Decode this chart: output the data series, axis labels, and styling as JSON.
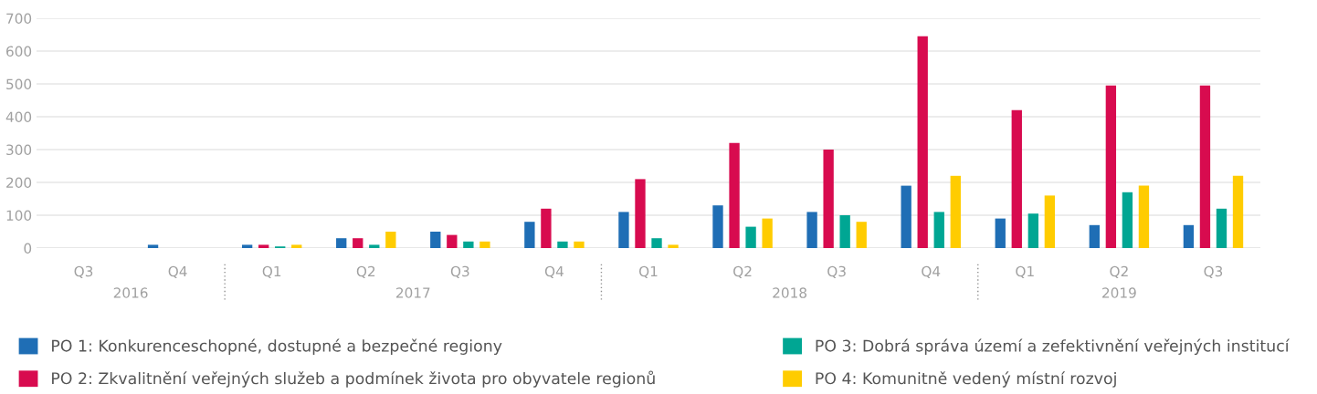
{
  "chart_data": {
    "type": "bar",
    "categories": [
      "Q3",
      "Q4",
      "Q1",
      "Q2",
      "Q3",
      "Q4",
      "Q1",
      "Q2",
      "Q3",
      "Q4",
      "Q1",
      "Q2",
      "Q3"
    ],
    "series": [
      {
        "name": "PO 1: Konkurenceschopné, dostupné a bezpečné regiony",
        "color": "#1f6eb5",
        "values": [
          0,
          10,
          10,
          30,
          50,
          80,
          110,
          130,
          110,
          190,
          90,
          70,
          70
        ]
      },
      {
        "name": "PO 2: Zkvalitnění veřejných služeb a podmínek života pro obyvatele regionů",
        "color": "#d80b4f",
        "values": [
          0,
          0,
          10,
          30,
          40,
          120,
          210,
          320,
          300,
          645,
          420,
          495,
          495
        ]
      },
      {
        "name": "PO 3: Dobrá správa území a zefektivnění veřejných institucí",
        "color": "#00a693",
        "values": [
          0,
          0,
          5,
          10,
          20,
          20,
          30,
          65,
          100,
          110,
          105,
          170,
          120
        ]
      },
      {
        "name": "PO 4: Komunitně vedený místní rozvoj",
        "color": "#ffcc00",
        "values": [
          0,
          0,
          10,
          50,
          20,
          20,
          10,
          90,
          80,
          220,
          160,
          190,
          220
        ]
      }
    ],
    "annotations": [
      "2016",
      "2017",
      "2018",
      "2019"
    ],
    "ylim": [
      0,
      700
    ],
    "yticks": [
      0,
      100,
      200,
      300,
      400,
      500,
      600,
      700
    ],
    "grid": "y",
    "legend": "bottom"
  }
}
